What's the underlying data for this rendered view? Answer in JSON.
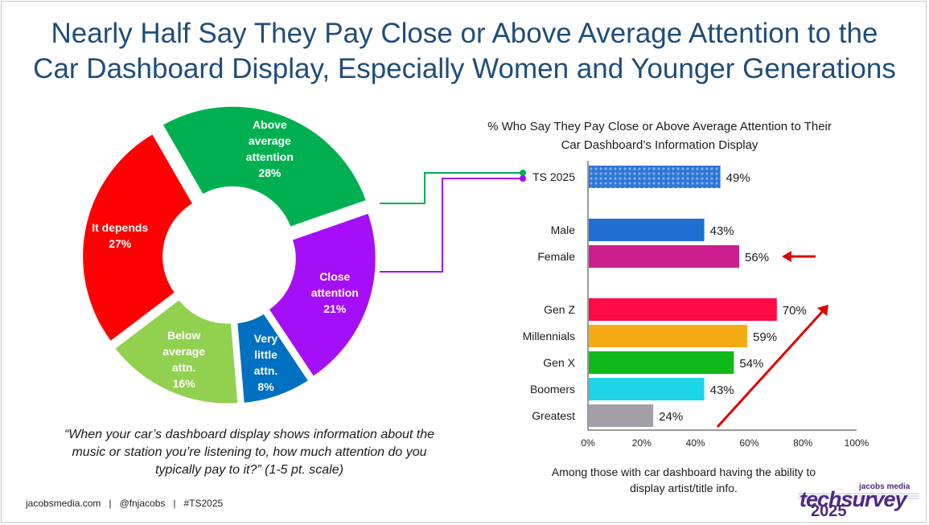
{
  "title_lines": [
    "Nearly Half Say They Pay Close or Above Average Attention to the",
    "Car Dashboard Display, Especially Women and Younger Generations"
  ],
  "donut": {
    "slices": [
      {
        "lines": [
          "Above",
          "average",
          "attention",
          "28%"
        ],
        "value": 28,
        "color": "#00b050"
      },
      {
        "lines": [
          "Close",
          "attention",
          "21%"
        ],
        "value": 21,
        "color": "#a50ff7"
      },
      {
        "lines": [
          "Very",
          "little",
          "attn.",
          "8%"
        ],
        "value": 8,
        "color": "#0070c0"
      },
      {
        "lines": [
          "Below",
          "average",
          "attn.",
          "16%"
        ],
        "value": 16,
        "color": "#92d050"
      },
      {
        "lines": [
          "It depends",
          "27%"
        ],
        "value": 27,
        "color": "#ff0000"
      }
    ]
  },
  "question": "“When your car’s dashboard display shows information about the music or station you’re listening to, how much attention do you typically pay to it?” (1-5 pt. scale)",
  "footer": "jacobsmedia.com   |   @fnjacobs   |   #TS2025",
  "chart_data": {
    "type": "bar",
    "orientation": "horizontal",
    "title": "% Who Say They Pay Close or Above Average Attention to Their Car Dashboard’s Information Display",
    "categories": [
      "TS 2025",
      "Male",
      "Female",
      "Gen Z",
      "Millennials",
      "Gen X",
      "Boomers",
      "Greatest"
    ],
    "values": [
      49,
      43,
      56,
      70,
      59,
      54,
      43,
      24
    ],
    "value_labels": [
      "49%",
      "43%",
      "56%",
      "70%",
      "59%",
      "54%",
      "43%",
      "24%"
    ],
    "colors": [
      "#2f75d6",
      "#1f6fd1",
      "#cc1f8f",
      "#ff0a45",
      "#f5ab15",
      "#11b81a",
      "#1dd4e8",
      "#a39ea8"
    ],
    "xlim": [
      0,
      100
    ],
    "xticks": [
      "0%",
      "20%",
      "40%",
      "60%",
      "80%",
      "100%"
    ],
    "grid": false
  },
  "bar_note": "Among those with car dashboard having the ability to display artist/title info.",
  "logo": {
    "top": "jacobs media",
    "main": "techsurvey",
    "year": "2025"
  }
}
